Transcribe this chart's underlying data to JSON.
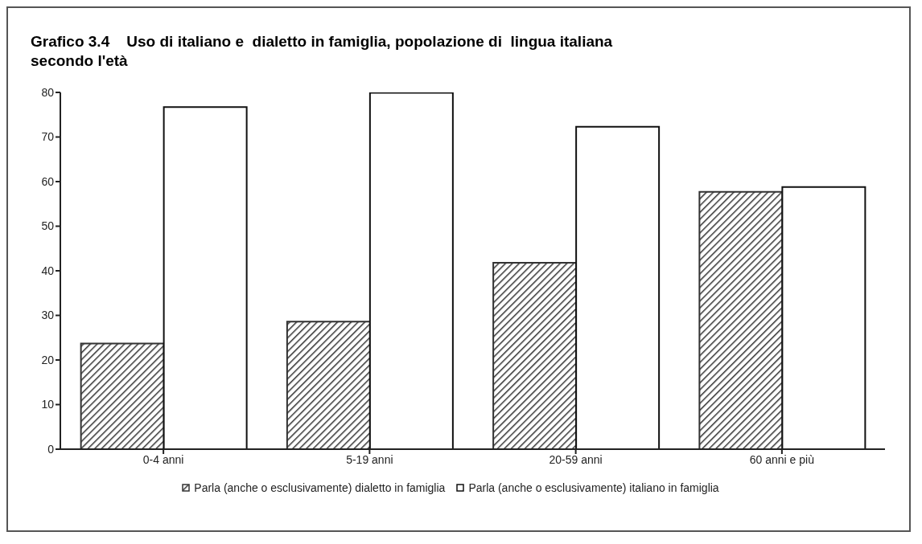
{
  "chart_data": {
    "type": "bar",
    "title": "Grafico 3.4    Uso di italiano e  dialetto in famiglia, popolazione di  lingua italiana secondo l'età",
    "categories": [
      "0-4 anni",
      "5-19 anni",
      "20-59 anni",
      "60 anni e più"
    ],
    "series": [
      {
        "name": "Parla (anche o esclusivamente) dialetto in famiglia",
        "color": "#333333",
        "values": [
          23.7,
          28.6,
          41.8,
          57.7
        ]
      },
      {
        "name": "Parla (anche o esclusivamente) italiano in famiglia",
        "color": "#ffffff",
        "values": [
          76.7,
          79.9,
          72.3,
          58.8
        ]
      }
    ],
    "ylim": [
      0,
      80
    ],
    "yticks": [
      0,
      10,
      20,
      30,
      40,
      50,
      60,
      70,
      80
    ],
    "grid": false,
    "legend": "bottom"
  }
}
